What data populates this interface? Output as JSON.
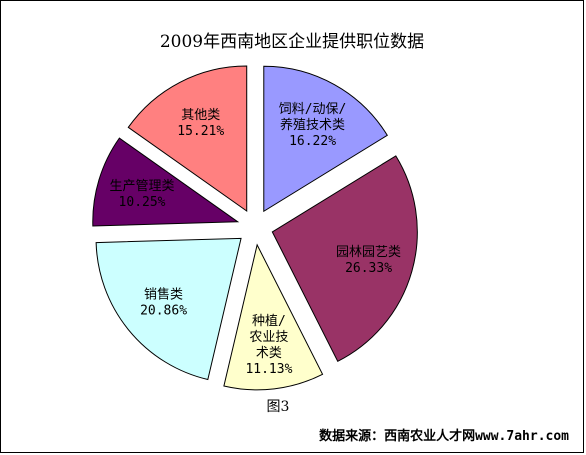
{
  "chart_data": {
    "type": "pie",
    "title": "2009年西南地区企业提供职位数据",
    "caption": "图3",
    "source": "数据来源：西南农业人才网www.7ahr.com",
    "slices": [
      {
        "name": "饲料/动保/养殖技术类",
        "label_lines": [
          "饲料/动保/",
          "养殖技术类"
        ],
        "value_text": "16.22%",
        "value": 16.22,
        "color": "#9999ff"
      },
      {
        "name": "园林园艺类",
        "label_lines": [
          "园林园艺类"
        ],
        "value_text": "26.33%",
        "value": 26.33,
        "color": "#993366"
      },
      {
        "name": "种植/农业技术类",
        "label_lines": [
          "种植/",
          "农业技",
          "术类"
        ],
        "value_text": "11.13%",
        "value": 11.13,
        "color": "#ffffcc"
      },
      {
        "name": "销售类",
        "label_lines": [
          "销售类"
        ],
        "value_text": "20.86%",
        "value": 20.86,
        "color": "#ccffff"
      },
      {
        "name": "生产管理类",
        "label_lines": [
          "生产管理类"
        ],
        "value_text": "10.25%",
        "value": 10.25,
        "color": "#660066"
      },
      {
        "name": "其他类",
        "label_lines": [
          "其他类"
        ],
        "value_text": "15.21%",
        "value": 15.21,
        "color": "#ff8080"
      }
    ]
  }
}
